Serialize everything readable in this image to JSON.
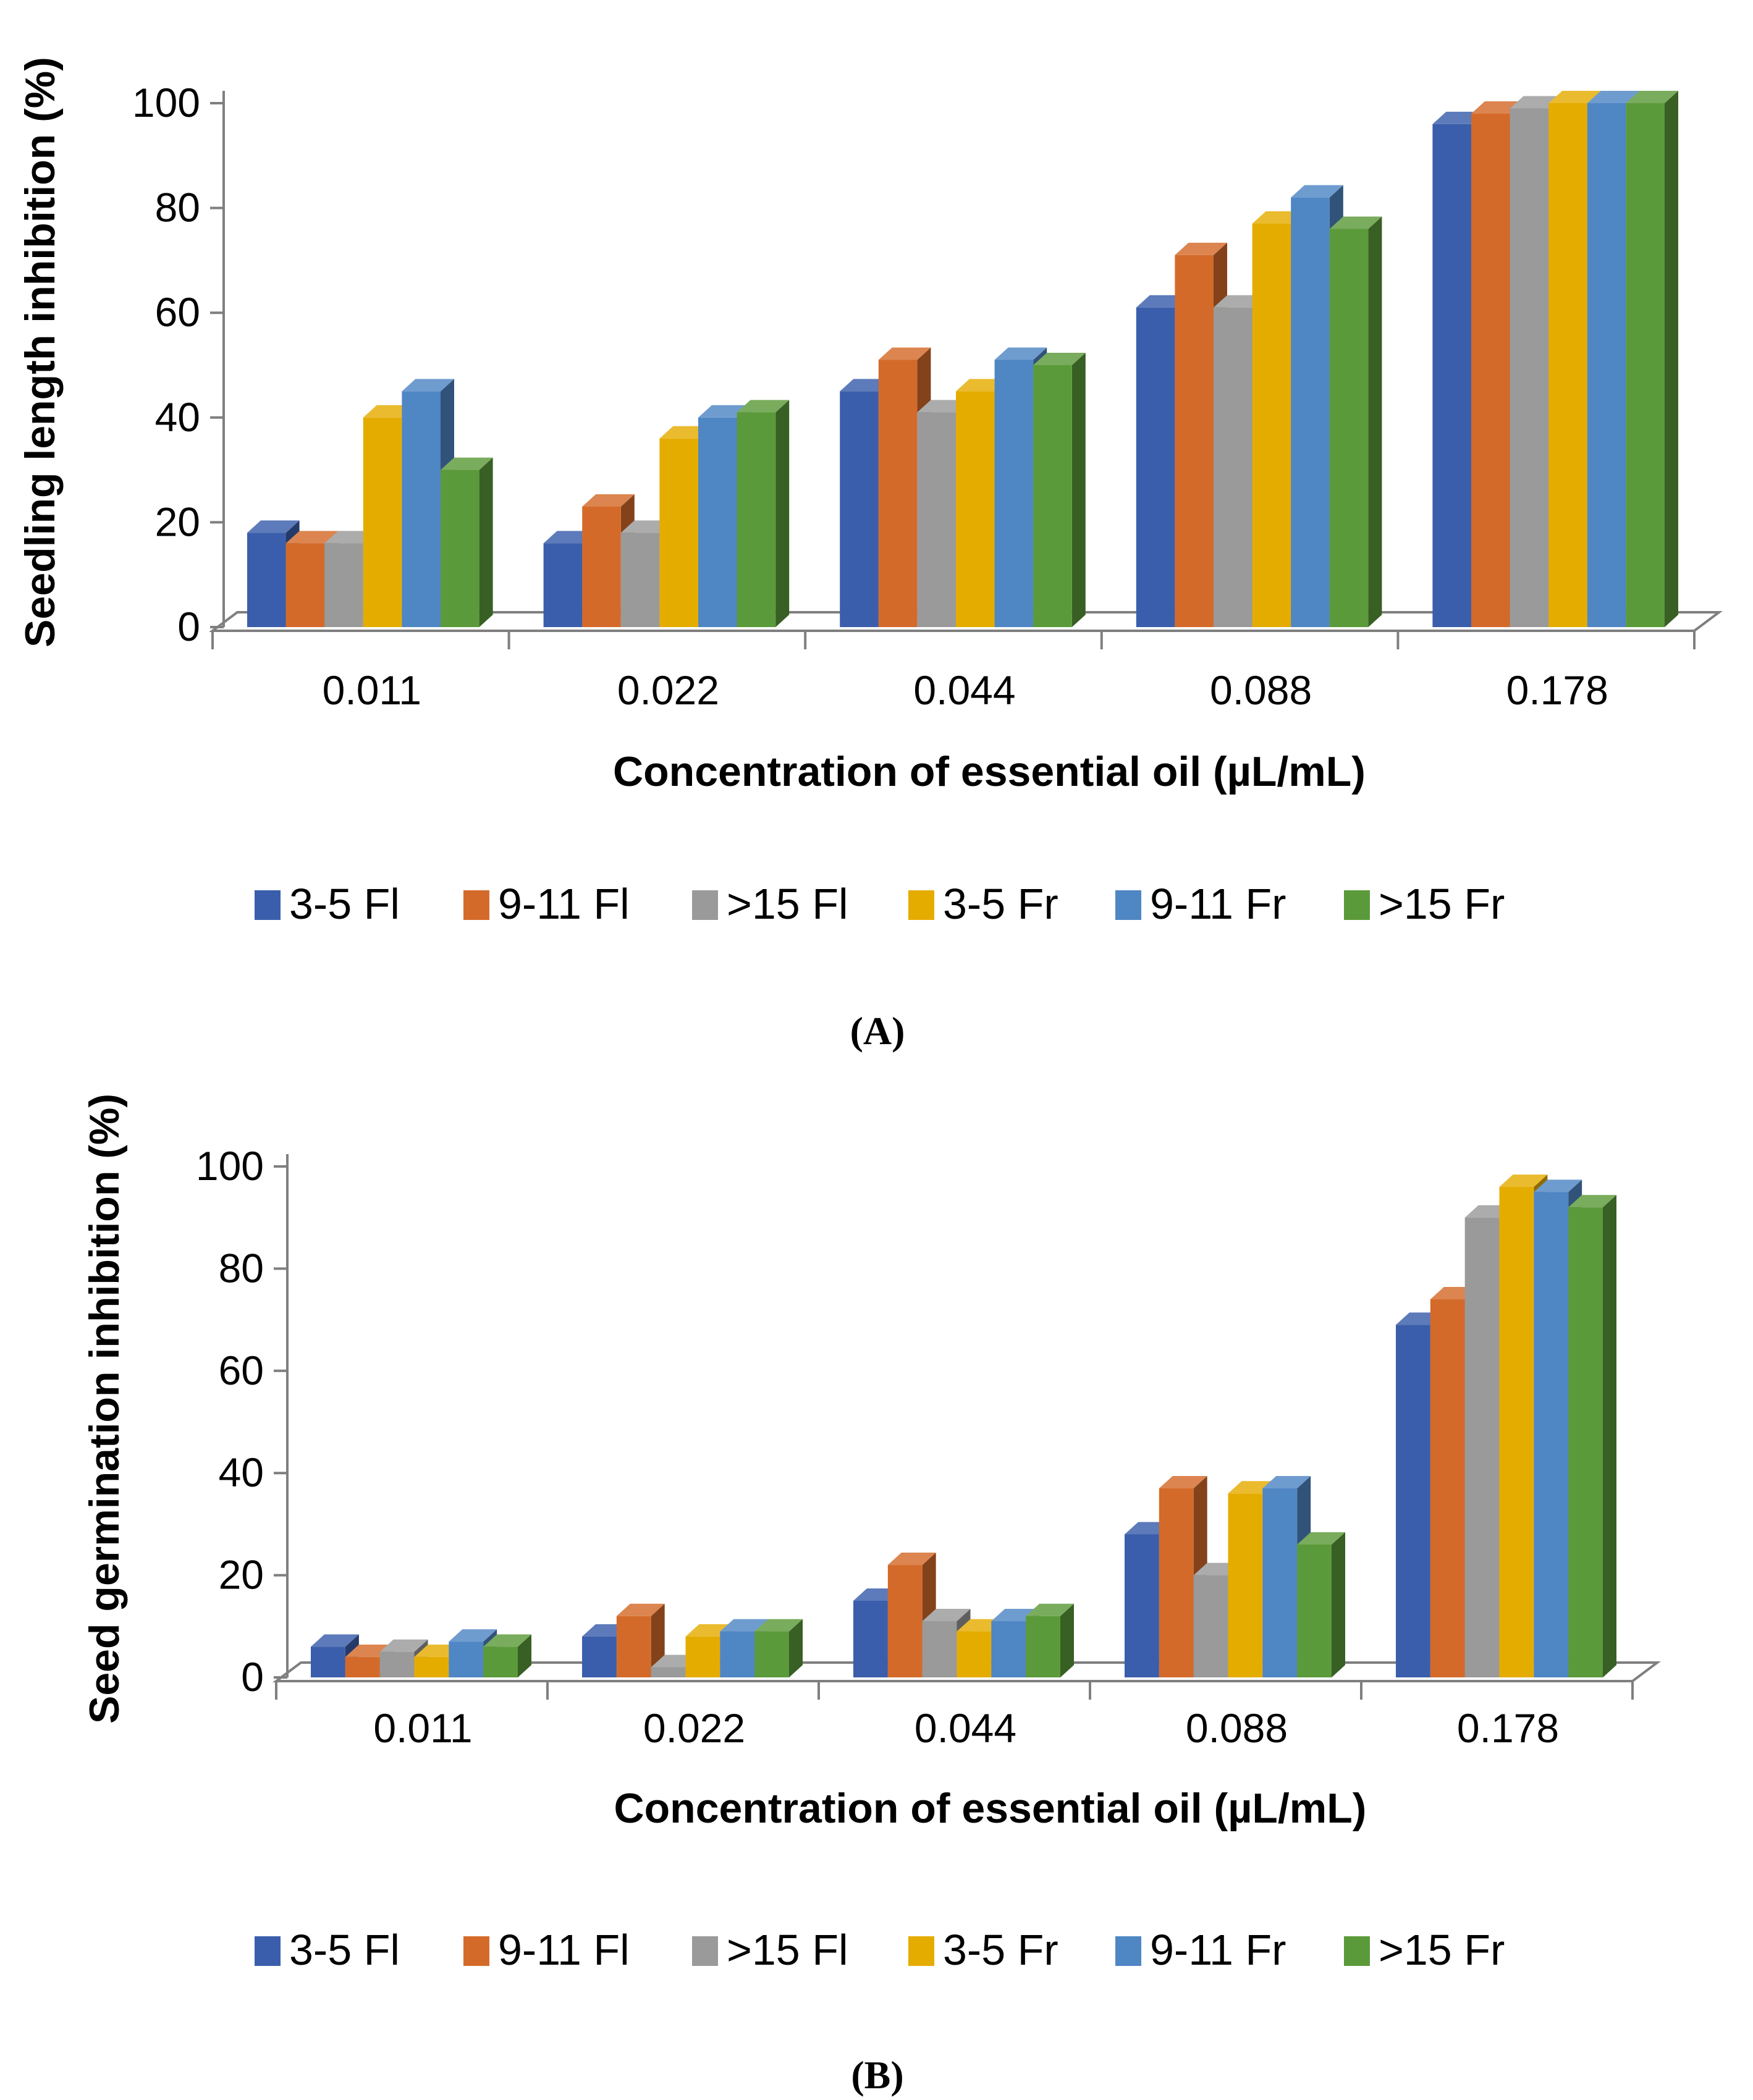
{
  "colors": {
    "3-5 Fl": "#3a5eab",
    "9-11 Fl": "#d46a2a",
    ">15 Fl": "#9a9a9a",
    "3-5 Fr": "#e5ac00",
    "9-11 Fr": "#4f86c4",
    ">15 Fr": "#5b9a3a"
  },
  "legend": [
    "3-5 Fl",
    "9-11 Fl",
    ">15 Fl",
    "3-5 Fr",
    "9-11 Fr",
    ">15 Fr"
  ],
  "chart_data": [
    {
      "type": "bar",
      "panel": "(A)",
      "title": "",
      "xlabel": "Concentration of essential oil (µL/mL)",
      "ylabel": "Seedling length inhibition (%)",
      "ylim": [
        0,
        100
      ],
      "yticks": [
        0,
        20,
        40,
        60,
        80,
        100
      ],
      "categories": [
        "0.011",
        "0.022",
        "0.044",
        "0.088",
        "0.178"
      ],
      "series": [
        {
          "name": "3-5 Fl",
          "values": [
            18,
            16,
            45,
            61,
            96
          ]
        },
        {
          "name": "9-11 Fl",
          "values": [
            16,
            23,
            51,
            71,
            98
          ]
        },
        {
          "name": ">15 Fl",
          "values": [
            16,
            18,
            41,
            61,
            99
          ]
        },
        {
          "name": "3-5 Fr",
          "values": [
            40,
            36,
            45,
            77,
            100
          ]
        },
        {
          "name": "9-11 Fr",
          "values": [
            45,
            40,
            51,
            82,
            100
          ]
        },
        {
          "name": ">15 Fr",
          "values": [
            30,
            41,
            50,
            76,
            100
          ]
        }
      ]
    },
    {
      "type": "bar",
      "panel": "(B)",
      "title": "",
      "xlabel": "Concentration of essential oil (µL/mL)",
      "ylabel": "Seed germination inhibition (%)",
      "ylim": [
        0,
        100
      ],
      "yticks": [
        0,
        20,
        40,
        60,
        80,
        100
      ],
      "categories": [
        "0.011",
        "0.022",
        "0.044",
        "0.088",
        "0.178"
      ],
      "series": [
        {
          "name": "3-5 Fl",
          "values": [
            6,
            8,
            15,
            28,
            69
          ]
        },
        {
          "name": "9-11 Fl",
          "values": [
            4,
            12,
            22,
            37,
            74
          ]
        },
        {
          "name": ">15 Fl",
          "values": [
            5,
            2,
            11,
            20,
            90
          ]
        },
        {
          "name": "3-5 Fr",
          "values": [
            4,
            8,
            9,
            36,
            96
          ]
        },
        {
          "name": "9-11 Fr",
          "values": [
            7,
            9,
            11,
            37,
            95
          ]
        },
        {
          "name": ">15 Fr",
          "values": [
            6,
            9,
            12,
            26,
            92
          ]
        }
      ]
    }
  ]
}
